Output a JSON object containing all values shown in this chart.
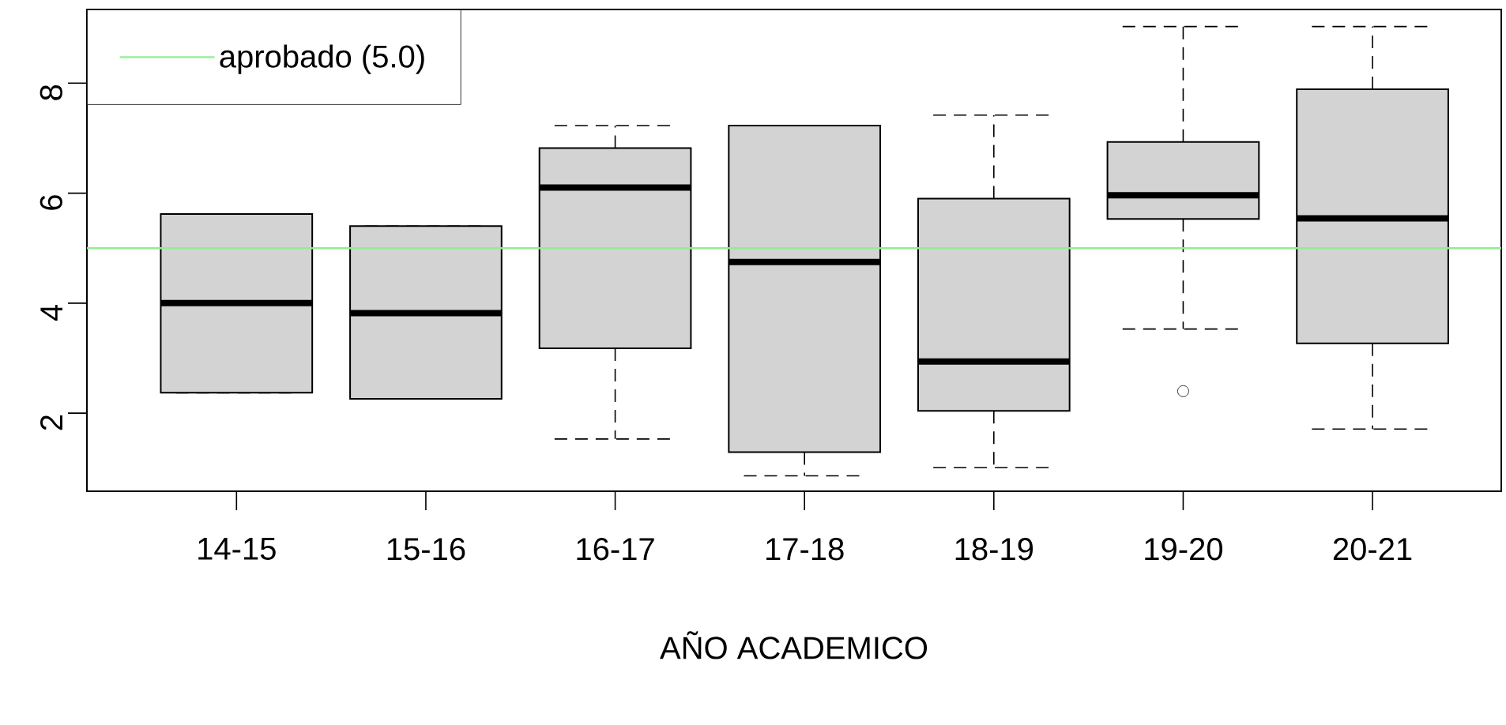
{
  "chart_data": {
    "type": "box",
    "xlabel": "AÑO ACADEMICO",
    "categories": [
      "14-15",
      "15-16",
      "16-17",
      "17-18",
      "18-19",
      "19-20",
      "20-21"
    ],
    "series": [
      {
        "color": "#d3d3d3",
        "boxes": [
          {
            "low": 2.37,
            "q1": 2.37,
            "median": 4.0,
            "q3": 5.62,
            "high": 5.62
          },
          {
            "low": 2.26,
            "q1": 2.26,
            "median": 3.82,
            "q3": 5.4,
            "high": 5.4
          },
          {
            "low": 1.53,
            "q1": 3.18,
            "median": 6.1,
            "q3": 6.82,
            "high": 7.23
          },
          {
            "low": 0.86,
            "q1": 1.29,
            "median": 4.75,
            "q3": 7.23,
            "high": 7.23
          },
          {
            "low": 1.01,
            "q1": 2.04,
            "median": 2.94,
            "q3": 5.9,
            "high": 7.42
          },
          {
            "low": 3.53,
            "q1": 5.53,
            "median": 5.96,
            "q3": 6.93,
            "high": 9.03,
            "outliers": [
              2.4
            ]
          },
          {
            "low": 1.71,
            "q1": 3.27,
            "median": 5.54,
            "q3": 7.89,
            "high": 9.03
          }
        ]
      }
    ],
    "ylim": [
      0.58,
      9.34
    ],
    "yticks": [
      2,
      4,
      6,
      8
    ],
    "ref_lines": [
      {
        "axis": "y",
        "value": 5.0,
        "label": "aprobado (5.0)",
        "color": "#90ee90"
      }
    ],
    "legend": "top left"
  }
}
